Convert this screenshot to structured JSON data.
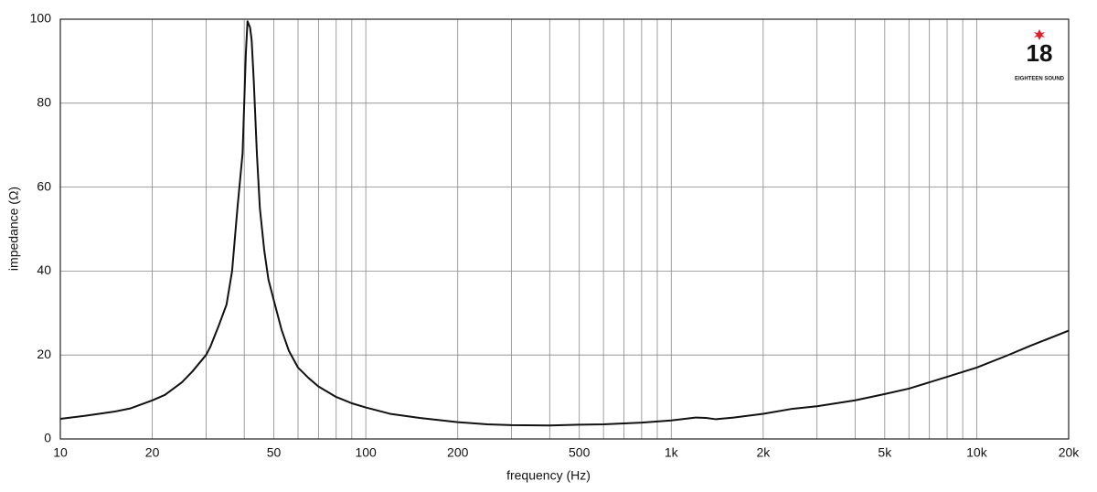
{
  "chart_data": {
    "type": "line",
    "xlabel": "frequency (Hz)",
    "ylabel": "impedance (Ω)",
    "xscale": "log",
    "grid": true,
    "annotations": [
      "18",
      "EIGHTEEN SOUND"
    ],
    "xlim": [
      10,
      20000
    ],
    "ylim": [
      0,
      100
    ],
    "xticks": [
      10,
      20,
      50,
      100,
      200,
      500,
      {
        "value": 1000,
        "label": "1k"
      },
      {
        "value": 2000,
        "label": "2k"
      },
      {
        "value": 5000,
        "label": "5k"
      },
      {
        "value": 10000,
        "label": "10k"
      },
      {
        "value": 20000,
        "label": "20k"
      }
    ],
    "xminor": [
      30,
      40,
      60,
      70,
      80,
      90,
      300,
      400,
      600,
      700,
      800,
      900,
      3000,
      4000,
      6000,
      7000,
      8000,
      9000
    ],
    "yticks": [
      0,
      20,
      40,
      60,
      80,
      100
    ],
    "x": [
      10,
      12,
      15,
      17,
      20,
      22,
      25,
      27,
      30,
      31,
      33,
      35,
      36.5,
      38,
      39.5,
      40.5,
      41,
      41.8,
      42.3,
      43,
      44,
      45,
      46.5,
      48,
      50,
      53,
      56,
      60,
      65,
      70,
      80,
      90,
      100,
      120,
      150,
      200,
      250,
      300,
      400,
      500,
      600,
      800,
      1000,
      1200,
      1300,
      1400,
      1600,
      2000,
      2500,
      3000,
      4000,
      5000,
      6000,
      8000,
      10000,
      12500,
      15000,
      20000
    ],
    "series": [
      {
        "color": "#111111",
        "values": [
          4.8,
          5.5,
          6.5,
          7.3,
          9.2,
          10.5,
          13.5,
          16,
          20,
          22,
          27,
          32,
          40,
          55,
          68,
          92,
          99.5,
          98,
          95,
          85,
          68,
          55,
          45,
          38,
          33,
          26,
          21,
          17,
          14.5,
          12.5,
          10,
          8.5,
          7.5,
          6,
          5,
          4,
          3.5,
          3.3,
          3.2,
          3.4,
          3.5,
          3.9,
          4.4,
          5.1,
          5.0,
          4.7,
          5.1,
          6,
          7.2,
          7.8,
          9.2,
          10.7,
          12,
          14.8,
          17,
          19.8,
          22.2,
          25.8
        ]
      }
    ]
  }
}
